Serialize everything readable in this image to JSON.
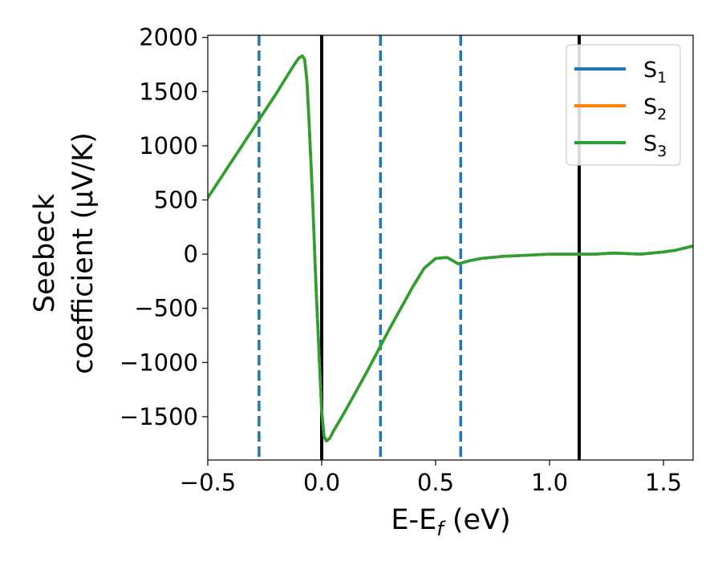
{
  "chart_data": {
    "type": "line",
    "xlabel_main": "E-E",
    "xlabel_sub": "f",
    "xlabel_unit": " (eV)",
    "ylabel_line1": "Seebeck",
    "ylabel_line2": "coefficient  (μV/K)",
    "xlim": [
      -0.5,
      1.63
    ],
    "ylim": [
      -1900,
      2020
    ],
    "xticks": [
      -0.5,
      0.0,
      0.5,
      1.0,
      1.5
    ],
    "xtick_labels": [
      "−0.5",
      "0.0",
      "0.5",
      "1.0",
      "1.5"
    ],
    "yticks": [
      2000,
      1500,
      1000,
      500,
      0,
      -500,
      -1000,
      -1500
    ],
    "ytick_labels": [
      "2000",
      "1500",
      "1000",
      "500",
      "0",
      "−500",
      "−1000",
      "−1500"
    ],
    "vlines_solid": [
      0.0,
      1.13
    ],
    "vlines_dashed": [
      -0.275,
      0.258,
      0.61
    ],
    "legend_position": "top-right",
    "series": [
      {
        "name_main": "S",
        "name_sub": "1",
        "color": "#1f77b4",
        "x": [
          -0.5,
          -0.45,
          -0.4,
          -0.35,
          -0.3,
          -0.25,
          -0.2,
          -0.15,
          -0.12,
          -0.1,
          -0.085,
          -0.075,
          -0.065,
          -0.055,
          -0.04,
          -0.025,
          -0.01,
          0.0,
          0.01,
          0.02,
          0.035,
          0.05,
          0.1,
          0.15,
          0.2,
          0.25,
          0.3,
          0.35,
          0.4,
          0.45,
          0.5,
          0.55,
          0.6,
          0.65,
          0.7,
          0.8,
          0.9,
          1.0,
          1.1,
          1.2,
          1.28,
          1.4,
          1.5,
          1.55,
          1.6,
          1.63
        ],
        "values": [
          520,
          680,
          840,
          1000,
          1160,
          1320,
          1480,
          1650,
          1750,
          1810,
          1830,
          1800,
          1600,
          1200,
          500,
          -300,
          -1000,
          -1450,
          -1680,
          -1725,
          -1700,
          -1640,
          -1460,
          -1270,
          -1080,
          -880,
          -680,
          -490,
          -300,
          -130,
          -40,
          -30,
          -90,
          -60,
          -40,
          -20,
          -10,
          0,
          0,
          0,
          10,
          0,
          20,
          35,
          60,
          75
        ]
      },
      {
        "name_main": "S",
        "name_sub": "2",
        "color": "#ff7f0e",
        "x": [
          -0.5,
          -0.45,
          -0.4,
          -0.35,
          -0.3,
          -0.25,
          -0.2,
          -0.15,
          -0.12,
          -0.1,
          -0.085,
          -0.075,
          -0.065,
          -0.055,
          -0.04,
          -0.025,
          -0.01,
          0.0,
          0.01,
          0.02,
          0.035,
          0.05,
          0.1,
          0.15,
          0.2,
          0.25,
          0.3,
          0.35,
          0.4,
          0.45,
          0.5,
          0.55,
          0.6,
          0.65,
          0.7,
          0.8,
          0.9,
          1.0,
          1.1,
          1.2,
          1.28,
          1.4,
          1.5,
          1.55,
          1.6,
          1.63
        ],
        "values": [
          520,
          680,
          840,
          1000,
          1160,
          1320,
          1480,
          1650,
          1750,
          1810,
          1830,
          1800,
          1600,
          1200,
          500,
          -300,
          -1000,
          -1450,
          -1680,
          -1725,
          -1700,
          -1640,
          -1460,
          -1270,
          -1080,
          -880,
          -680,
          -490,
          -300,
          -130,
          -40,
          -30,
          -90,
          -60,
          -40,
          -20,
          -10,
          0,
          0,
          0,
          10,
          0,
          20,
          35,
          60,
          75
        ]
      },
      {
        "name_main": "S",
        "name_sub": "3",
        "color": "#2ca02c",
        "x": [
          -0.5,
          -0.45,
          -0.4,
          -0.35,
          -0.3,
          -0.25,
          -0.2,
          -0.15,
          -0.12,
          -0.1,
          -0.085,
          -0.075,
          -0.065,
          -0.055,
          -0.04,
          -0.025,
          -0.01,
          0.0,
          0.01,
          0.02,
          0.035,
          0.05,
          0.1,
          0.15,
          0.2,
          0.25,
          0.3,
          0.35,
          0.4,
          0.45,
          0.5,
          0.55,
          0.6,
          0.65,
          0.7,
          0.8,
          0.9,
          1.0,
          1.1,
          1.2,
          1.28,
          1.4,
          1.5,
          1.55,
          1.6,
          1.63
        ],
        "values": [
          520,
          680,
          840,
          1000,
          1160,
          1320,
          1480,
          1650,
          1750,
          1810,
          1830,
          1800,
          1600,
          1200,
          500,
          -300,
          -1000,
          -1450,
          -1680,
          -1725,
          -1700,
          -1640,
          -1460,
          -1270,
          -1080,
          -880,
          -680,
          -490,
          -300,
          -130,
          -40,
          -30,
          -90,
          -60,
          -40,
          -20,
          -10,
          0,
          0,
          0,
          10,
          0,
          20,
          35,
          60,
          75
        ]
      }
    ]
  }
}
